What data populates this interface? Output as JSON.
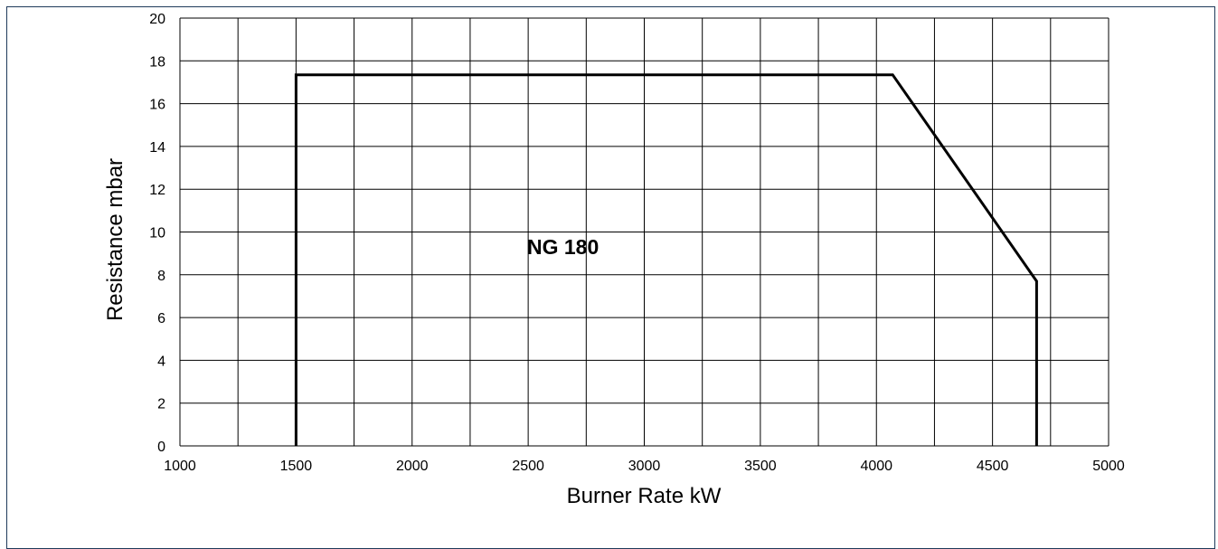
{
  "chart_data": {
    "type": "line",
    "xlabel": "Burner Rate  kW",
    "ylabel": "Resistance  mbar",
    "xlim": [
      1000,
      5000
    ],
    "ylim": [
      0,
      20
    ],
    "x_ticks": [
      1000,
      1500,
      2000,
      2500,
      3000,
      3500,
      4000,
      4500,
      5000
    ],
    "y_ticks": [
      0,
      2,
      4,
      6,
      8,
      10,
      12,
      14,
      16,
      18,
      20
    ],
    "x_gridlines": [
      1000,
      1250,
      1500,
      1750,
      2000,
      2250,
      2500,
      2750,
      3000,
      3250,
      3500,
      3750,
      4000,
      4250,
      4500,
      4750,
      5000
    ],
    "y_gridlines": [
      0,
      2,
      4,
      6,
      8,
      10,
      12,
      14,
      16,
      18,
      20
    ],
    "grid": true,
    "series": [
      {
        "name": "NG 180",
        "color": "#000000",
        "points": [
          {
            "x": 1500,
            "y": 0
          },
          {
            "x": 1500,
            "y": 17.35
          },
          {
            "x": 4070,
            "y": 17.35
          },
          {
            "x": 4690,
            "y": 7.7
          },
          {
            "x": 4690,
            "y": 0
          }
        ]
      }
    ],
    "series_label": {
      "text": "NG 180",
      "x": 2650,
      "y": 9.3
    }
  }
}
